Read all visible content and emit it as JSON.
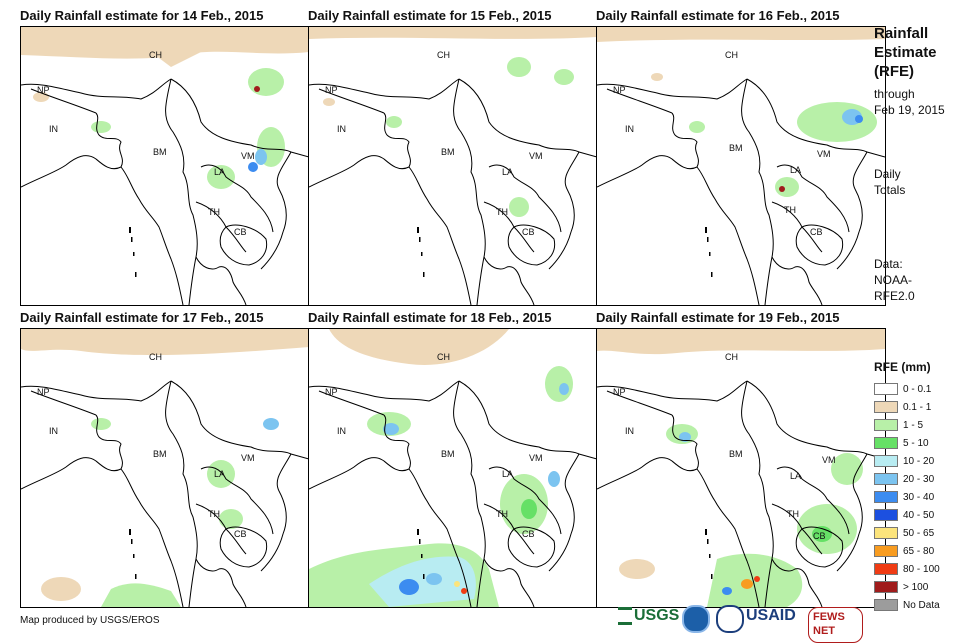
{
  "panels": [
    {
      "title": "Daily Rainfall estimate for 14 Feb., 2015",
      "labels": {
        "ch": "CH",
        "np": "NP",
        "in": "IN",
        "bm": "BM",
        "la": "LA",
        "vm": "VM",
        "th": "TH",
        "cb": "CB"
      }
    },
    {
      "title": "Daily Rainfall estimate for 15 Feb., 2015",
      "labels": {
        "ch": "CH",
        "np": "NP",
        "in": "IN",
        "bm": "BM",
        "la": "LA",
        "vm": "VM",
        "th": "TH",
        "cb": "CB"
      }
    },
    {
      "title": "Daily Rainfall estimate for 16 Feb., 2015",
      "labels": {
        "ch": "CH",
        "np": "NP",
        "in": "IN",
        "bm": "BM",
        "la": "LA",
        "vm": "VM",
        "th": "TH",
        "cb": "CB"
      }
    },
    {
      "title": "Daily Rainfall estimate for 17 Feb., 2015",
      "labels": {
        "ch": "CH",
        "np": "NP",
        "in": "IN",
        "bm": "BM",
        "la": "LA",
        "vm": "VM",
        "th": "TH",
        "cb": "CB"
      }
    },
    {
      "title": "Daily Rainfall estimate for 18 Feb., 2015",
      "labels": {
        "ch": "CH",
        "np": "NP",
        "in": "IN",
        "bm": "BM",
        "la": "LA",
        "vm": "VM",
        "th": "TH",
        "cb": "CB"
      }
    },
    {
      "title": "Daily Rainfall estimate for 19 Feb., 2015",
      "labels": {
        "ch": "CH",
        "np": "NP",
        "in": "IN",
        "bm": "BM",
        "la": "LA",
        "vm": "VM",
        "th": "TH",
        "cb": "CB"
      }
    }
  ],
  "sidebar": {
    "title_line1": "Rainfall",
    "title_line2": "Estimate",
    "title_line3": "(RFE)",
    "through_line1": "through",
    "through_line2": "Feb 19, 2015",
    "daily_line1": "Daily",
    "daily_line2": "Totals",
    "data_line1": "Data:",
    "data_line2": "NOAA-",
    "data_line3": "RFE2.0"
  },
  "legend": {
    "title": "RFE (mm)",
    "items": [
      {
        "label": "0 - 0.1",
        "color": "#ffffff"
      },
      {
        "label": "0.1 - 1",
        "color": "#eed8b8"
      },
      {
        "label": "1 - 5",
        "color": "#b8f0a8"
      },
      {
        "label": "5 - 10",
        "color": "#66e066"
      },
      {
        "label": "10 - 20",
        "color": "#b8ecf2"
      },
      {
        "label": "20 - 30",
        "color": "#7cc4f0"
      },
      {
        "label": "30 - 40",
        "color": "#3c8cf0"
      },
      {
        "label": "40 - 50",
        "color": "#1c50e0"
      },
      {
        "label": "50 - 65",
        "color": "#fce47c"
      },
      {
        "label": "65 - 80",
        "color": "#f89c20"
      },
      {
        "label": "80 - 100",
        "color": "#f03c14"
      },
      {
        "label": "> 100",
        "color": "#a01c1c"
      },
      {
        "label": "No Data",
        "color": "#9c9c9c"
      }
    ]
  },
  "footer": {
    "credit": "Map produced by USGS/EROS"
  },
  "logos": {
    "usgs": "USGS",
    "noaa": "NOAA",
    "usaid": "USAID",
    "fewsnet": "FEWS NET"
  }
}
